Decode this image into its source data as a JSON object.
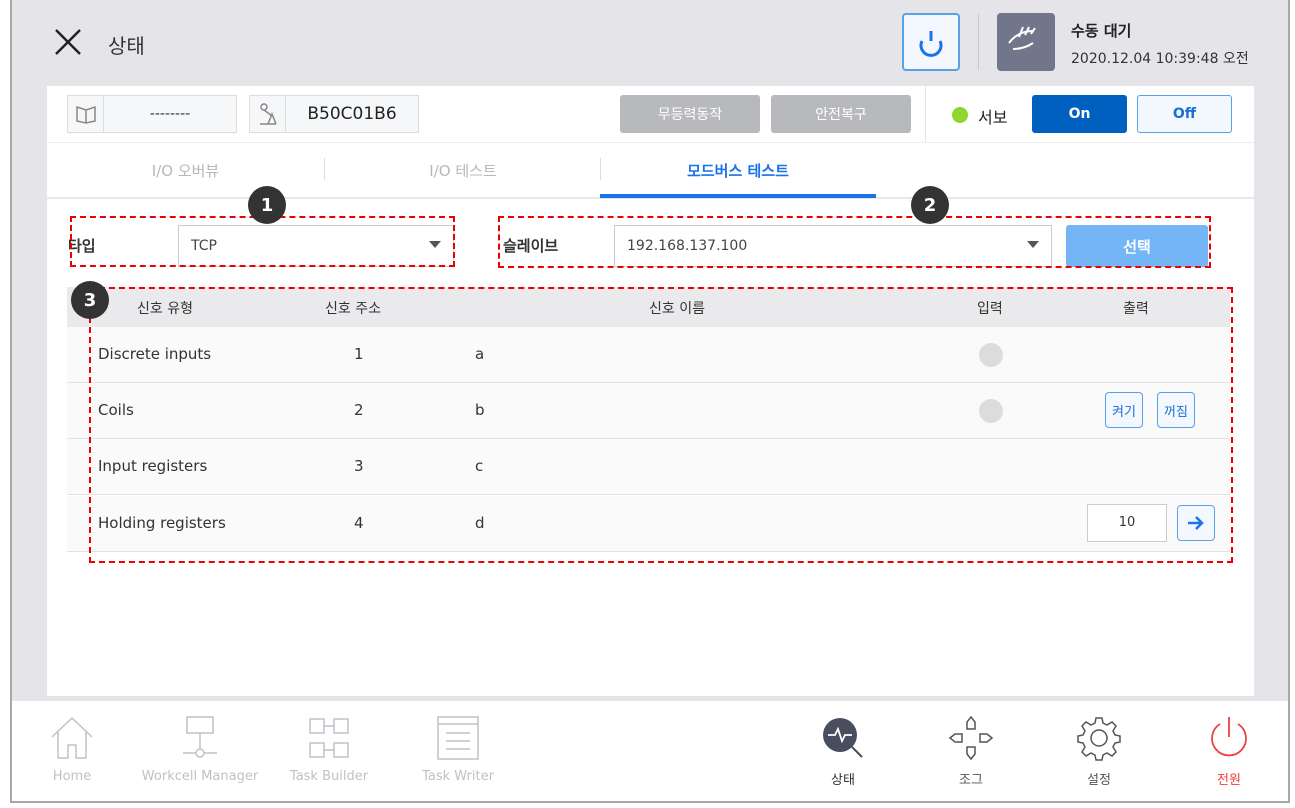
{
  "header": {
    "title": "상태",
    "mode": "수동 대기",
    "datetime": "2020.12.04 10:39:48 오전"
  },
  "toolbar": {
    "workcell_value": "--------",
    "robot_id": "B50C01B6",
    "btn_free_drive": "무등력동작",
    "btn_safety_recovery": "안전복구",
    "servo_label": "서보",
    "servo_on": "On",
    "servo_off": "Off",
    "servo_status_color": "#8ed630"
  },
  "tabs": [
    {
      "label": "I/O 오버뷰"
    },
    {
      "label": "I/O 테스트"
    },
    {
      "label": "모드버스 테스트",
      "active": true
    }
  ],
  "form": {
    "type_label": "타입",
    "type_value": "TCP",
    "slave_label": "슬레이브",
    "slave_value": "192.168.137.100",
    "select_button": "선택"
  },
  "annotations": [
    "1",
    "2",
    "3"
  ],
  "table": {
    "headers": [
      "신호 유형",
      "신호 주소",
      "신호 이름",
      "입력",
      "출력"
    ],
    "rows": [
      {
        "type": "Discrete inputs",
        "address": "1",
        "name": "a",
        "has_input": true
      },
      {
        "type": "Coils",
        "address": "2",
        "name": "b",
        "has_input": true,
        "on_label": "켜기",
        "off_label": "꺼짐"
      },
      {
        "type": "Input registers",
        "address": "3",
        "name": "c"
      },
      {
        "type": "Holding registers",
        "address": "4",
        "name": "d",
        "value": "10"
      }
    ]
  },
  "nav": {
    "left": [
      "Home",
      "Workcell Manager",
      "Task Builder",
      "Task Writer"
    ],
    "right": [
      "상태",
      "조그",
      "설정",
      "전원"
    ]
  },
  "colors": {
    "accent": "#1a73e8",
    "primary_button": "#0060c0",
    "power": "#f04040"
  }
}
